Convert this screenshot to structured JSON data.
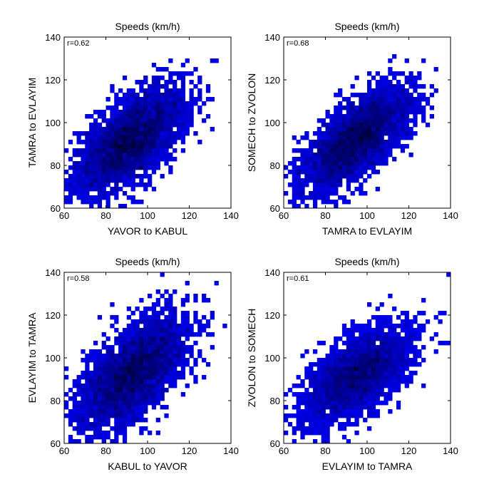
{
  "chart_data": [
    {
      "type": "heatmap",
      "title": "Speeds (km/h)",
      "xlabel": "YAVOR to KABUL",
      "ylabel": "TAMRA to EVLAYIM",
      "annotation": "r=0.62",
      "xlim": [
        60,
        140
      ],
      "ylim": [
        60,
        140
      ],
      "xticks": [
        60,
        80,
        100,
        120,
        140
      ],
      "yticks": [
        60,
        80,
        100,
        120,
        140
      ],
      "center": [
        92,
        92
      ],
      "spread": [
        13,
        12
      ],
      "correlation": 0.62
    },
    {
      "type": "heatmap",
      "title": "Speeds (km/h)",
      "xlabel": "TAMRA to EVLAYIM",
      "ylabel": "SOMECH to ZVOLON",
      "annotation": "r=0.68",
      "xlim": [
        60,
        140
      ],
      "ylim": [
        60,
        140
      ],
      "xticks": [
        60,
        80,
        100,
        120,
        140
      ],
      "yticks": [
        60,
        80,
        100,
        120,
        140
      ],
      "center": [
        95,
        92
      ],
      "spread": [
        13,
        12
      ],
      "correlation": 0.68
    },
    {
      "type": "heatmap",
      "title": "Speeds (km/h)",
      "xlabel": "KABUL to YAVOR",
      "ylabel": "EVLAYIM to TAMRA",
      "annotation": "r=0.58",
      "xlim": [
        60,
        140
      ],
      "ylim": [
        60,
        140
      ],
      "xticks": [
        60,
        80,
        100,
        120,
        140
      ],
      "yticks": [
        60,
        80,
        100,
        120,
        140
      ],
      "center": [
        93,
        93
      ],
      "spread": [
        13,
        13
      ],
      "correlation": 0.58
    },
    {
      "type": "heatmap",
      "title": "Speeds (km/h)",
      "xlabel": "EVLAYIM to TAMRA",
      "ylabel": "ZVOLON to SOMECH",
      "annotation": "r=0.61",
      "xlim": [
        60,
        140
      ],
      "ylim": [
        60,
        140
      ],
      "xticks": [
        60,
        80,
        100,
        120,
        140
      ],
      "yticks": [
        60,
        80,
        100,
        120,
        140
      ],
      "center": [
        95,
        92
      ],
      "spread": [
        13,
        11
      ],
      "correlation": 0.61
    }
  ],
  "colors": {
    "low": "#0000ff",
    "high": "#000033",
    "background": "#ffffff"
  }
}
